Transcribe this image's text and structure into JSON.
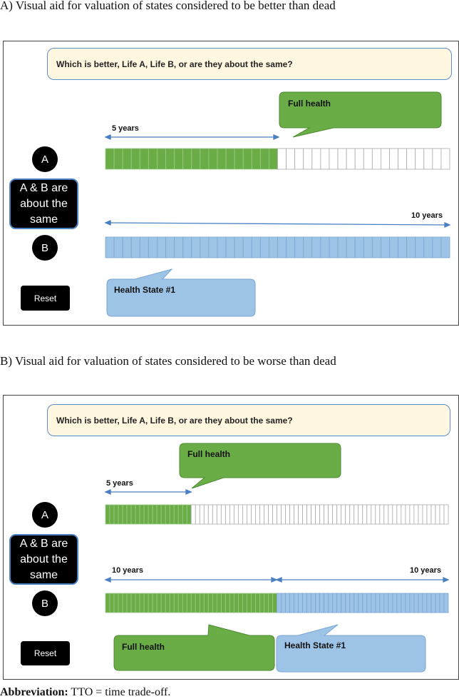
{
  "panel_a": {
    "title": "A) Visual aid for valuation of states considered to be better than dead",
    "question": "Which is better, Life A, Life B, or are they about the same?",
    "btn_a": "A",
    "btn_same": "A & B are about the same",
    "btn_b": "B",
    "reset": "Reset",
    "bubble_full_health": "Full health",
    "bubble_state": "Health State #1",
    "label_a_years": "5 years",
    "label_b_years": "10 years",
    "bar_a": {
      "filled_cells": 20,
      "total_cells": 40
    },
    "bar_b": {
      "filled_cells": 40,
      "total_cells": 40
    }
  },
  "panel_b": {
    "title": "B) Visual aid for valuation of states considered to be worse than dead",
    "question": "Which is better, Life A, Life B, or are they about the same?",
    "btn_a": "A",
    "btn_same": "A & B are about the same",
    "btn_b": "B",
    "reset": "Reset",
    "bubble_full_health_top": "Full health",
    "bubble_full_health_bottom": "Full health",
    "bubble_state": "Health State #1",
    "label_a_years": "5 years",
    "label_b_left_years": "10 years",
    "label_b_right_years": "10 years",
    "bar_a": {
      "filled_cells": 20,
      "total_cells": 80
    },
    "bar_b": {
      "green_cells": 40,
      "blue_cells": 40
    }
  },
  "footer": {
    "abbrev_bold": "Abbreviation:",
    "abbrev_text": " TTO = time trade-off."
  },
  "colors": {
    "green": "#6aad47",
    "blue": "#9dc3e6",
    "question_bg": "#fff7df",
    "arrow": "#4a7fc1"
  }
}
